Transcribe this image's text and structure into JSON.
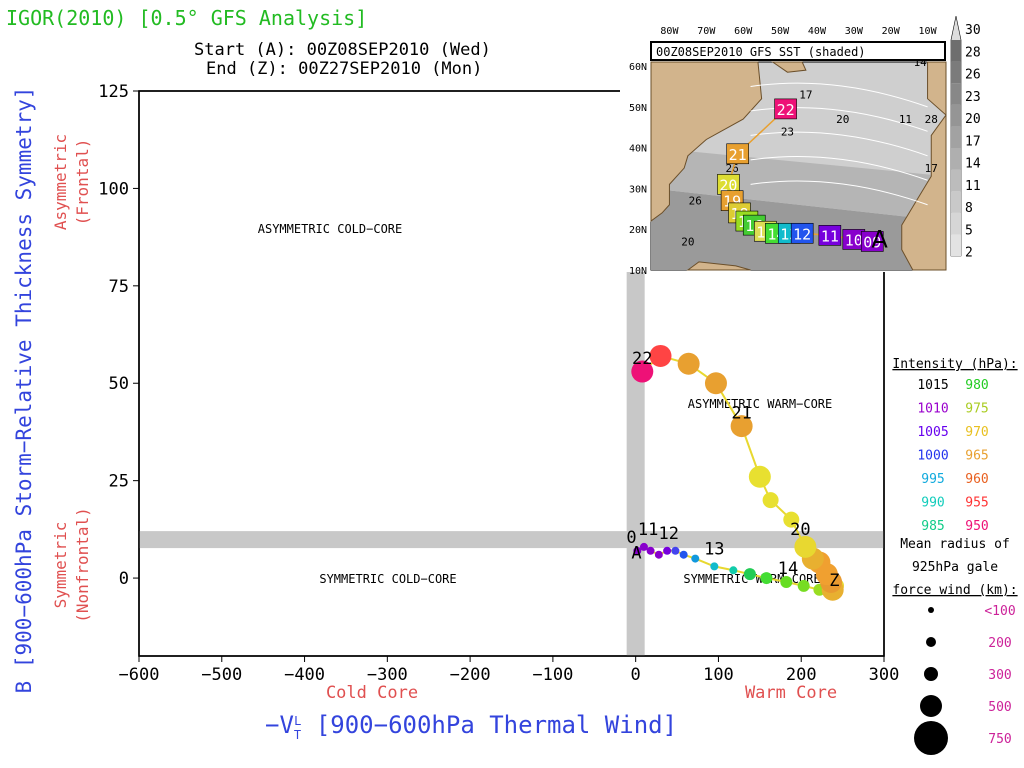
{
  "header": {
    "title": "IGOR(2010) [0.5° GFS Analysis]",
    "start": "Start (A): 00Z08SEP2010 (Wed)",
    "end": "End (Z): 00Z27SEP2010 (Mon)"
  },
  "chart_data": {
    "type": "scatter",
    "xlabel": "−V_T^L [900−600hPa Thermal Wind]",
    "xlabel_main": "−V",
    "xlabel_sub": "T",
    "xlabel_sup": "L",
    "xlabel_rest": " [900−600hPa Thermal Wind]",
    "ylabel": "B [900−600hPa Storm−Relative Thickness Symmetry]",
    "xlim": [
      -600,
      300
    ],
    "ylim": [
      -20,
      125
    ],
    "xticks": [
      -600,
      -500,
      -400,
      -300,
      -200,
      -100,
      0,
      100,
      200,
      300
    ],
    "xtick_labels": [
      "−600",
      "−500",
      "−400",
      "−300",
      "−200",
      "−100",
      "0",
      "100",
      "200",
      "300"
    ],
    "yticks": [
      0,
      25,
      50,
      75,
      100,
      125
    ],
    "ytick_labels": [
      "0",
      "25",
      "50",
      "75",
      "100",
      "125"
    ],
    "x_side_labels": {
      "left": "Cold Core",
      "right": "Warm Core"
    },
    "y_side_labels": {
      "top": "Asymmetric",
      "top2": "(Frontal)",
      "bottom": "Symmetric",
      "bottom2": "(Nonfrontal)"
    },
    "quadrant_labels": {
      "ul": "ASYMMETRIC COLD−CORE",
      "ur": "ASYMMETRIC WARM−CORE",
      "ll": "SYMMETRIC COLD−CORE",
      "lr": "SYMMETRIC WARM−CORE"
    },
    "bands": {
      "x": 0,
      "y": 10
    },
    "track": [
      {
        "x": 2,
        "y": 7,
        "size": 1,
        "color": "#8800cc"
      },
      {
        "x": 10,
        "y": 8,
        "size": 1,
        "color": "#8800cc"
      },
      {
        "x": 18,
        "y": 7,
        "size": 1,
        "color": "#8800cc"
      },
      {
        "x": 28,
        "y": 6,
        "size": 1,
        "color": "#8800cc"
      },
      {
        "x": 38,
        "y": 7,
        "size": 1,
        "color": "#7700dd"
      },
      {
        "x": 48,
        "y": 7,
        "size": 1,
        "color": "#4444ee"
      },
      {
        "x": 58,
        "y": 6,
        "size": 1,
        "color": "#2255ee"
      },
      {
        "x": 72,
        "y": 5,
        "size": 1,
        "color": "#1199dd"
      },
      {
        "x": 95,
        "y": 3,
        "size": 1,
        "color": "#11bbcc"
      },
      {
        "x": 118,
        "y": 2,
        "size": 1,
        "color": "#11ccaa"
      },
      {
        "x": 138,
        "y": 1,
        "size": 2,
        "color": "#22cc55"
      },
      {
        "x": 158,
        "y": 0,
        "size": 2,
        "color": "#44dd33"
      },
      {
        "x": 182,
        "y": -1,
        "size": 2,
        "color": "#66dd22"
      },
      {
        "x": 203,
        "y": -2,
        "size": 2,
        "color": "#77dd22"
      },
      {
        "x": 222,
        "y": -3,
        "size": 2,
        "color": "#99dd22"
      },
      {
        "x": 240,
        "y": -4,
        "size": 2,
        "color": "#ccdd22"
      },
      {
        "x": 242,
        "y": -2,
        "size": 3,
        "color": "#e8d830"
      },
      {
        "x": 238,
        "y": -3,
        "size": 4,
        "color": "#e8b030"
      },
      {
        "x": 236,
        "y": -1,
        "size": 4,
        "color": "#e89a30"
      },
      {
        "x": 231,
        "y": 1,
        "size": 4,
        "color": "#f0a030"
      },
      {
        "x": 222,
        "y": 4,
        "size": 4,
        "color": "#f0a030"
      },
      {
        "x": 214,
        "y": 5,
        "size": 4,
        "color": "#e8b030"
      },
      {
        "x": 205,
        "y": 8,
        "size": 4,
        "color": "#e8d830"
      },
      {
        "x": 188,
        "y": 15,
        "size": 3,
        "color": "#e8e030"
      },
      {
        "x": 163,
        "y": 20,
        "size": 3,
        "color": "#e8e030"
      },
      {
        "x": 150,
        "y": 26,
        "size": 4,
        "color": "#e8e030"
      },
      {
        "x": 128,
        "y": 39,
        "size": 4,
        "color": "#e8a030"
      },
      {
        "x": 97,
        "y": 50,
        "size": 4,
        "color": "#e8a030"
      },
      {
        "x": 64,
        "y": 55,
        "size": 4,
        "color": "#e8a030"
      },
      {
        "x": 30,
        "y": 57,
        "size": 4,
        "color": "#ff4444"
      },
      {
        "x": 8,
        "y": 53,
        "size": 4,
        "color": "#ee1177"
      }
    ],
    "labels": [
      {
        "text": "A",
        "x": 1,
        "y": 5
      },
      {
        "text": "0",
        "x": -5,
        "y": 9
      },
      {
        "text": "11",
        "x": 15,
        "y": 11
      },
      {
        "text": "12",
        "x": 40,
        "y": 10
      },
      {
        "text": "13",
        "x": 95,
        "y": 6
      },
      {
        "text": "14",
        "x": 184,
        "y": 1
      },
      {
        "text": "20",
        "x": 199,
        "y": 11
      },
      {
        "text": "21",
        "x": 128,
        "y": 41
      },
      {
        "text": "22",
        "x": 8,
        "y": 55
      },
      {
        "text": "Z",
        "x": 240,
        "y": -2
      }
    ]
  },
  "inset": {
    "title": "00Z08SEP2010 GFS SST (shaded)",
    "lon_labels": [
      "80W",
      "70W",
      "60W",
      "50W",
      "40W",
      "30W",
      "20W",
      "10W"
    ],
    "lat_labels": [
      "60N",
      "50N",
      "40N",
      "30N",
      "20N",
      "10N"
    ],
    "sst_contours": [
      "17",
      "20",
      "23",
      "26",
      "28",
      "14",
      "11",
      "17",
      "20",
      "23",
      "26"
    ],
    "colorbar": [
      "30",
      "28",
      "26",
      "23",
      "20",
      "17",
      "14",
      "11",
      "8",
      "5",
      "2"
    ],
    "track_boxes": [
      {
        "text": "22",
        "lon": -48.5,
        "lat": 49.5,
        "color": "#ee1177"
      },
      {
        "text": "21",
        "lon": -61.5,
        "lat": 38.5,
        "color": "#e8a030"
      },
      {
        "text": "20",
        "lon": -64,
        "lat": 31,
        "color": "#dddd33"
      },
      {
        "text": "19",
        "lon": -63,
        "lat": 27,
        "color": "#e8a030"
      },
      {
        "text": "18",
        "lon": -61,
        "lat": 24,
        "color": "#ddcc33"
      },
      {
        "text": "17",
        "lon": -59,
        "lat": 22,
        "color": "#99dd22"
      },
      {
        "text": "16",
        "lon": -57,
        "lat": 21,
        "color": "#44cc33"
      },
      {
        "text": "15",
        "lon": -54,
        "lat": 19.5,
        "color": "#dddd55"
      },
      {
        "text": "14",
        "lon": -51,
        "lat": 19,
        "color": "#44dd33"
      },
      {
        "text": "13",
        "lon": -47.5,
        "lat": 19,
        "color": "#11bbcc"
      },
      {
        "text": "12",
        "lon": -44,
        "lat": 19,
        "color": "#2255ee"
      },
      {
        "text": "11",
        "lon": -36.5,
        "lat": 18.5,
        "color": "#7700dd"
      },
      {
        "text": "10",
        "lon": -30,
        "lat": 17.5,
        "color": "#8800cc"
      },
      {
        "text": "09",
        "lon": -25,
        "lat": 17,
        "color": "#8800cc"
      }
    ],
    "start_marker": "A"
  },
  "legend": {
    "intensity_title": "Intensity (hPa):",
    "intensity": [
      {
        "left": "1015",
        "left_color": "#000000",
        "right": "980",
        "right_color": "#22cc22"
      },
      {
        "left": "1010",
        "left_color": "#9900cc",
        "right": "975",
        "right_color": "#aacc22"
      },
      {
        "left": "1005",
        "left_color": "#6600ee",
        "right": "970",
        "right_color": "#e8c020"
      },
      {
        "left": "1000",
        "left_color": "#2233ee",
        "right": "965",
        "right_color": "#e8a030"
      },
      {
        "left": "995",
        "left_color": "#11aadd",
        "right": "960",
        "right_color": "#e86020"
      },
      {
        "left": "990",
        "left_color": "#11ccbb",
        "right": "955",
        "right_color": "#ff3333"
      },
      {
        "left": "985",
        "left_color": "#11cc88",
        "right": "950",
        "right_color": "#ee1177"
      }
    ],
    "radius_title_1": "Mean radius of",
    "radius_title_2": "925hPa gale",
    "radius_title_3": "force wind (km):",
    "radius": [
      {
        "label": "<100",
        "r": 3
      },
      {
        "label": "200",
        "r": 5
      },
      {
        "label": "300",
        "r": 7
      },
      {
        "label": "500",
        "r": 11
      },
      {
        "label": "750",
        "r": 17
      }
    ]
  }
}
